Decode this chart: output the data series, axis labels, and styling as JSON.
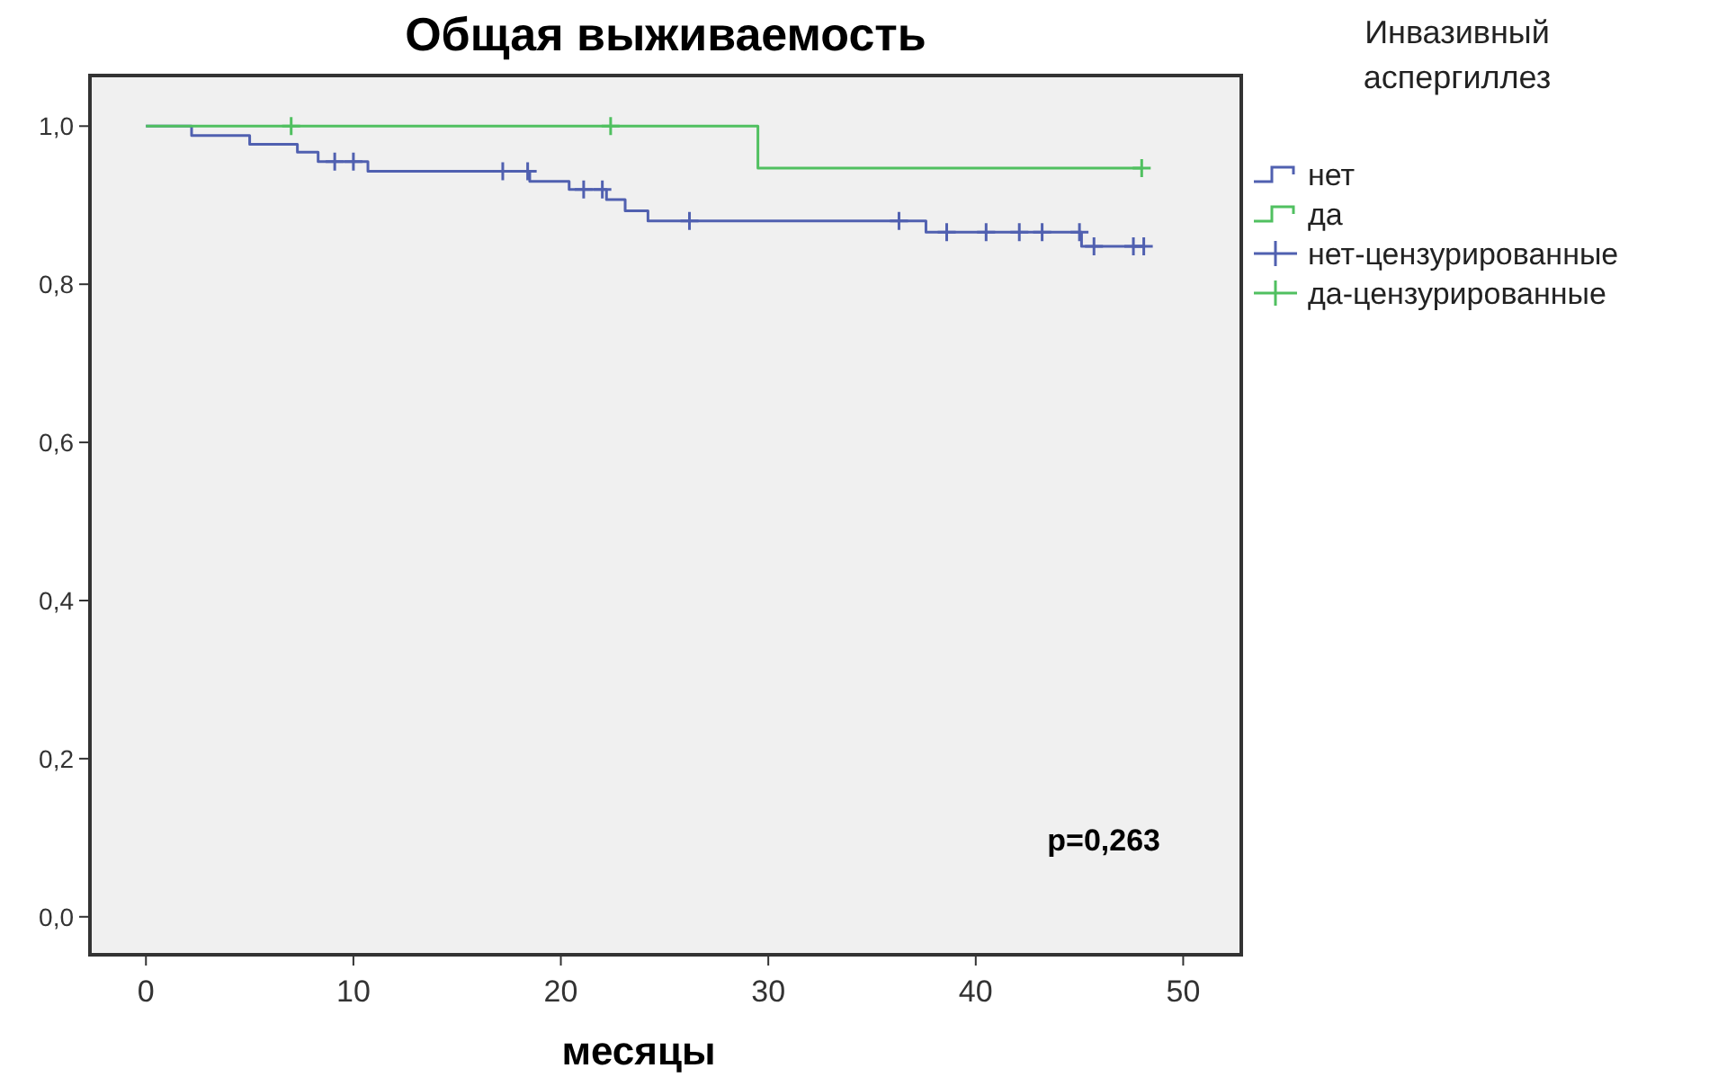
{
  "chart_data": {
    "type": "step",
    "title": "Общая выживаемость",
    "xlabel": "месяцы",
    "legend_title": "Инвазивный аспергиллез",
    "legend": "right",
    "xlim": [
      -2.7,
      52.8
    ],
    "ylim": [
      -0.048,
      1.064
    ],
    "xticks": [
      0,
      10,
      20,
      30,
      40,
      50
    ],
    "yticks": [
      {
        "value": 0,
        "label": "0,0"
      },
      {
        "value": 0.2,
        "label": "0,2"
      },
      {
        "value": 0.4,
        "label": "0,4"
      },
      {
        "value": 0.6,
        "label": "0,6"
      },
      {
        "value": 0.8,
        "label": "0,8"
      },
      {
        "value": 1,
        "label": "1,0"
      }
    ],
    "annotations": [
      "p=0,263"
    ],
    "series": [
      {
        "name": "нет",
        "color": "#5060b0",
        "x": [
          0,
          2.2,
          5.0,
          7.3,
          8.3,
          10.7,
          18.5,
          20.4,
          22.2,
          23.1,
          24.2,
          37.6,
          45.1,
          48.1
        ],
        "values": [
          1,
          0.988,
          0.977,
          0.967,
          0.955,
          0.943,
          0.93,
          0.92,
          0.907,
          0.893,
          0.88,
          0.866,
          0.848,
          0.848
        ]
      },
      {
        "name": "да",
        "color": "#50c060",
        "x": [
          0,
          29.5,
          48.0
        ],
        "values": [
          1,
          0.947,
          0.947
        ]
      },
      {
        "name": "нет-цензурированные",
        "type": "scatter",
        "marker": "cross",
        "color": "#5060b0",
        "x": [
          9.1,
          10.0,
          17.2,
          18.4,
          21.1,
          22.0,
          26.2,
          36.3,
          38.6,
          40.5,
          42.1,
          43.2,
          45.0,
          45.7,
          47.6,
          48.1
        ],
        "values": [
          0.955,
          0.955,
          0.943,
          0.943,
          0.92,
          0.92,
          0.88,
          0.88,
          0.866,
          0.866,
          0.866,
          0.866,
          0.866,
          0.848,
          0.848,
          0.848
        ]
      },
      {
        "name": "да-цензурированные",
        "type": "scatter",
        "marker": "cross",
        "color": "#50c060",
        "x": [
          7.0,
          22.4,
          48.0
        ],
        "values": [
          1,
          1,
          0.947
        ]
      }
    ]
  }
}
